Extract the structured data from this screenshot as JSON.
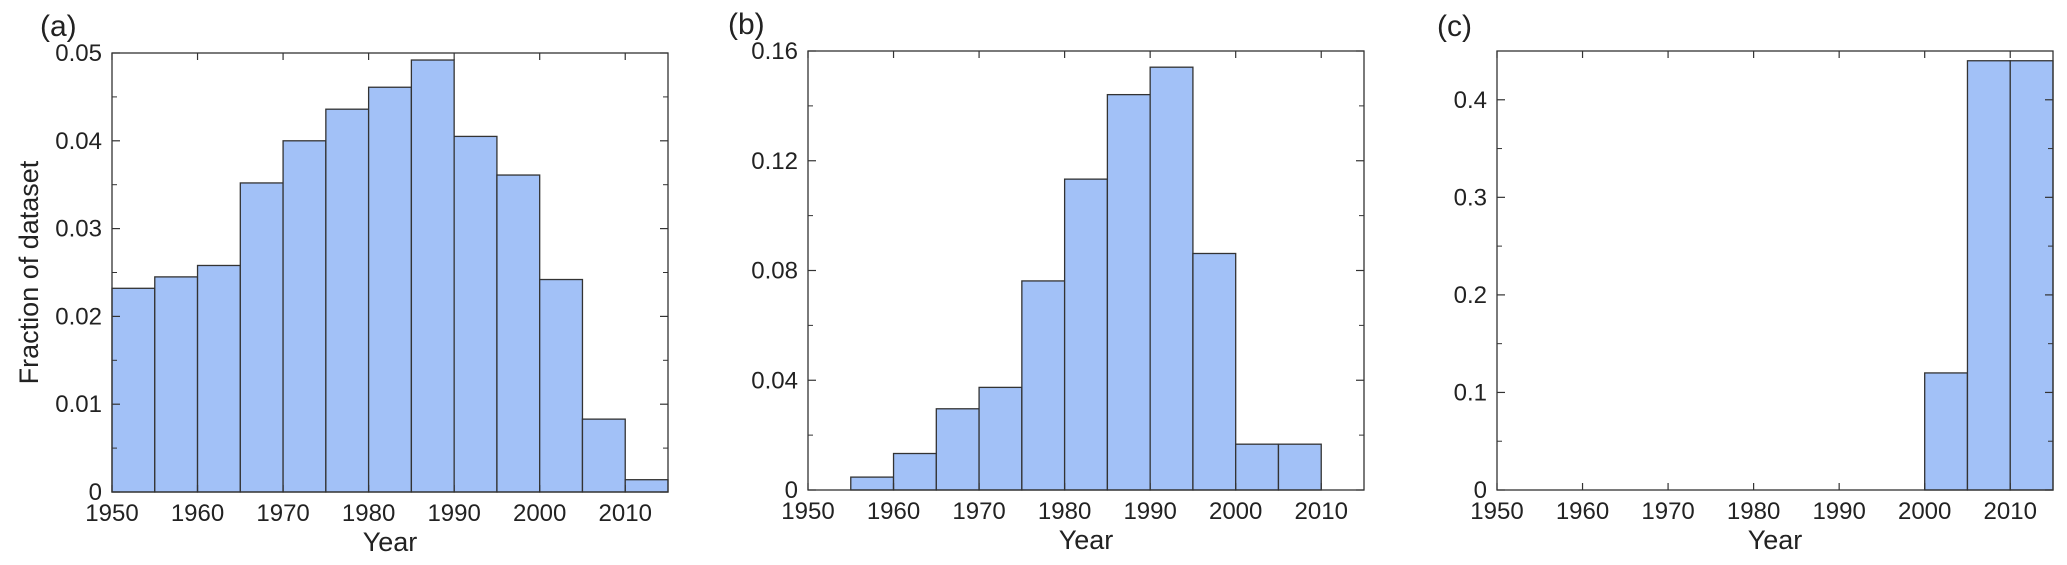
{
  "colors": {
    "bar_fill": "#a2c1f7",
    "bar_stroke": "#333333",
    "axis": "#333333",
    "text": "#222222"
  },
  "chart_data": [
    {
      "panel_label": "(a)",
      "type": "bar",
      "title": "",
      "xlabel": "Year",
      "ylabel": "Fraction of dataset",
      "bin_width": 5,
      "xlim": [
        1950,
        2015
      ],
      "ylim": [
        0,
        0.05
      ],
      "xticks": [
        1950,
        1960,
        1970,
        1980,
        1990,
        2000,
        2010
      ],
      "xtick_labels": [
        "1950",
        "1960",
        "1970",
        "1980",
        "1990",
        "2000",
        "2010"
      ],
      "yticks": [
        0,
        0.01,
        0.02,
        0.03,
        0.04,
        0.05
      ],
      "ytick_labels": [
        "0",
        "0.01",
        "0.02",
        "0.03",
        "0.04",
        "0.05"
      ],
      "grid": false,
      "bins": [
        1950,
        1955,
        1960,
        1965,
        1970,
        1975,
        1980,
        1985,
        1990,
        1995,
        2000,
        2005,
        2010
      ],
      "values": [
        0.0232,
        0.0245,
        0.0258,
        0.0352,
        0.04,
        0.0436,
        0.0461,
        0.0492,
        0.0405,
        0.0361,
        0.0242,
        0.0083,
        0.0014
      ]
    },
    {
      "panel_label": "(b)",
      "type": "bar",
      "title": "",
      "xlabel": "Year",
      "ylabel": "",
      "bin_width": 5,
      "xlim": [
        1950,
        2015
      ],
      "ylim": [
        0,
        0.16
      ],
      "xticks": [
        1950,
        1960,
        1970,
        1980,
        1990,
        2000,
        2010
      ],
      "xtick_labels": [
        "1950",
        "1960",
        "1970",
        "1980",
        "1990",
        "2000",
        "2010"
      ],
      "yticks": [
        0,
        0.04,
        0.08,
        0.12,
        0.16
      ],
      "ytick_labels": [
        "0",
        "0.04",
        "0.08",
        "0.12",
        "0.16"
      ],
      "grid": false,
      "bins": [
        1955,
        1960,
        1965,
        1970,
        1975,
        1980,
        1985,
        1990,
        1995,
        2000,
        2005
      ],
      "values": [
        0.0047,
        0.0133,
        0.0296,
        0.0374,
        0.0762,
        0.1133,
        0.1441,
        0.1541,
        0.0862,
        0.0167,
        0.0167
      ]
    },
    {
      "panel_label": "(c)",
      "type": "bar",
      "title": "",
      "xlabel": "Year",
      "ylabel": "",
      "bin_width": 5,
      "xlim": [
        1950,
        2015
      ],
      "ylim": [
        0,
        0.45
      ],
      "xticks": [
        1950,
        1960,
        1970,
        1980,
        1990,
        2000,
        2010
      ],
      "xtick_labels": [
        "1950",
        "1960",
        "1970",
        "1980",
        "1990",
        "2000",
        "2010"
      ],
      "yticks": [
        0,
        0.1,
        0.2,
        0.3,
        0.4
      ],
      "ytick_labels": [
        "0",
        "0.1",
        "0.2",
        "0.3",
        "0.4"
      ],
      "grid": false,
      "bins": [
        2000,
        2005,
        2010
      ],
      "values": [
        0.12,
        0.44,
        0.44
      ]
    }
  ]
}
